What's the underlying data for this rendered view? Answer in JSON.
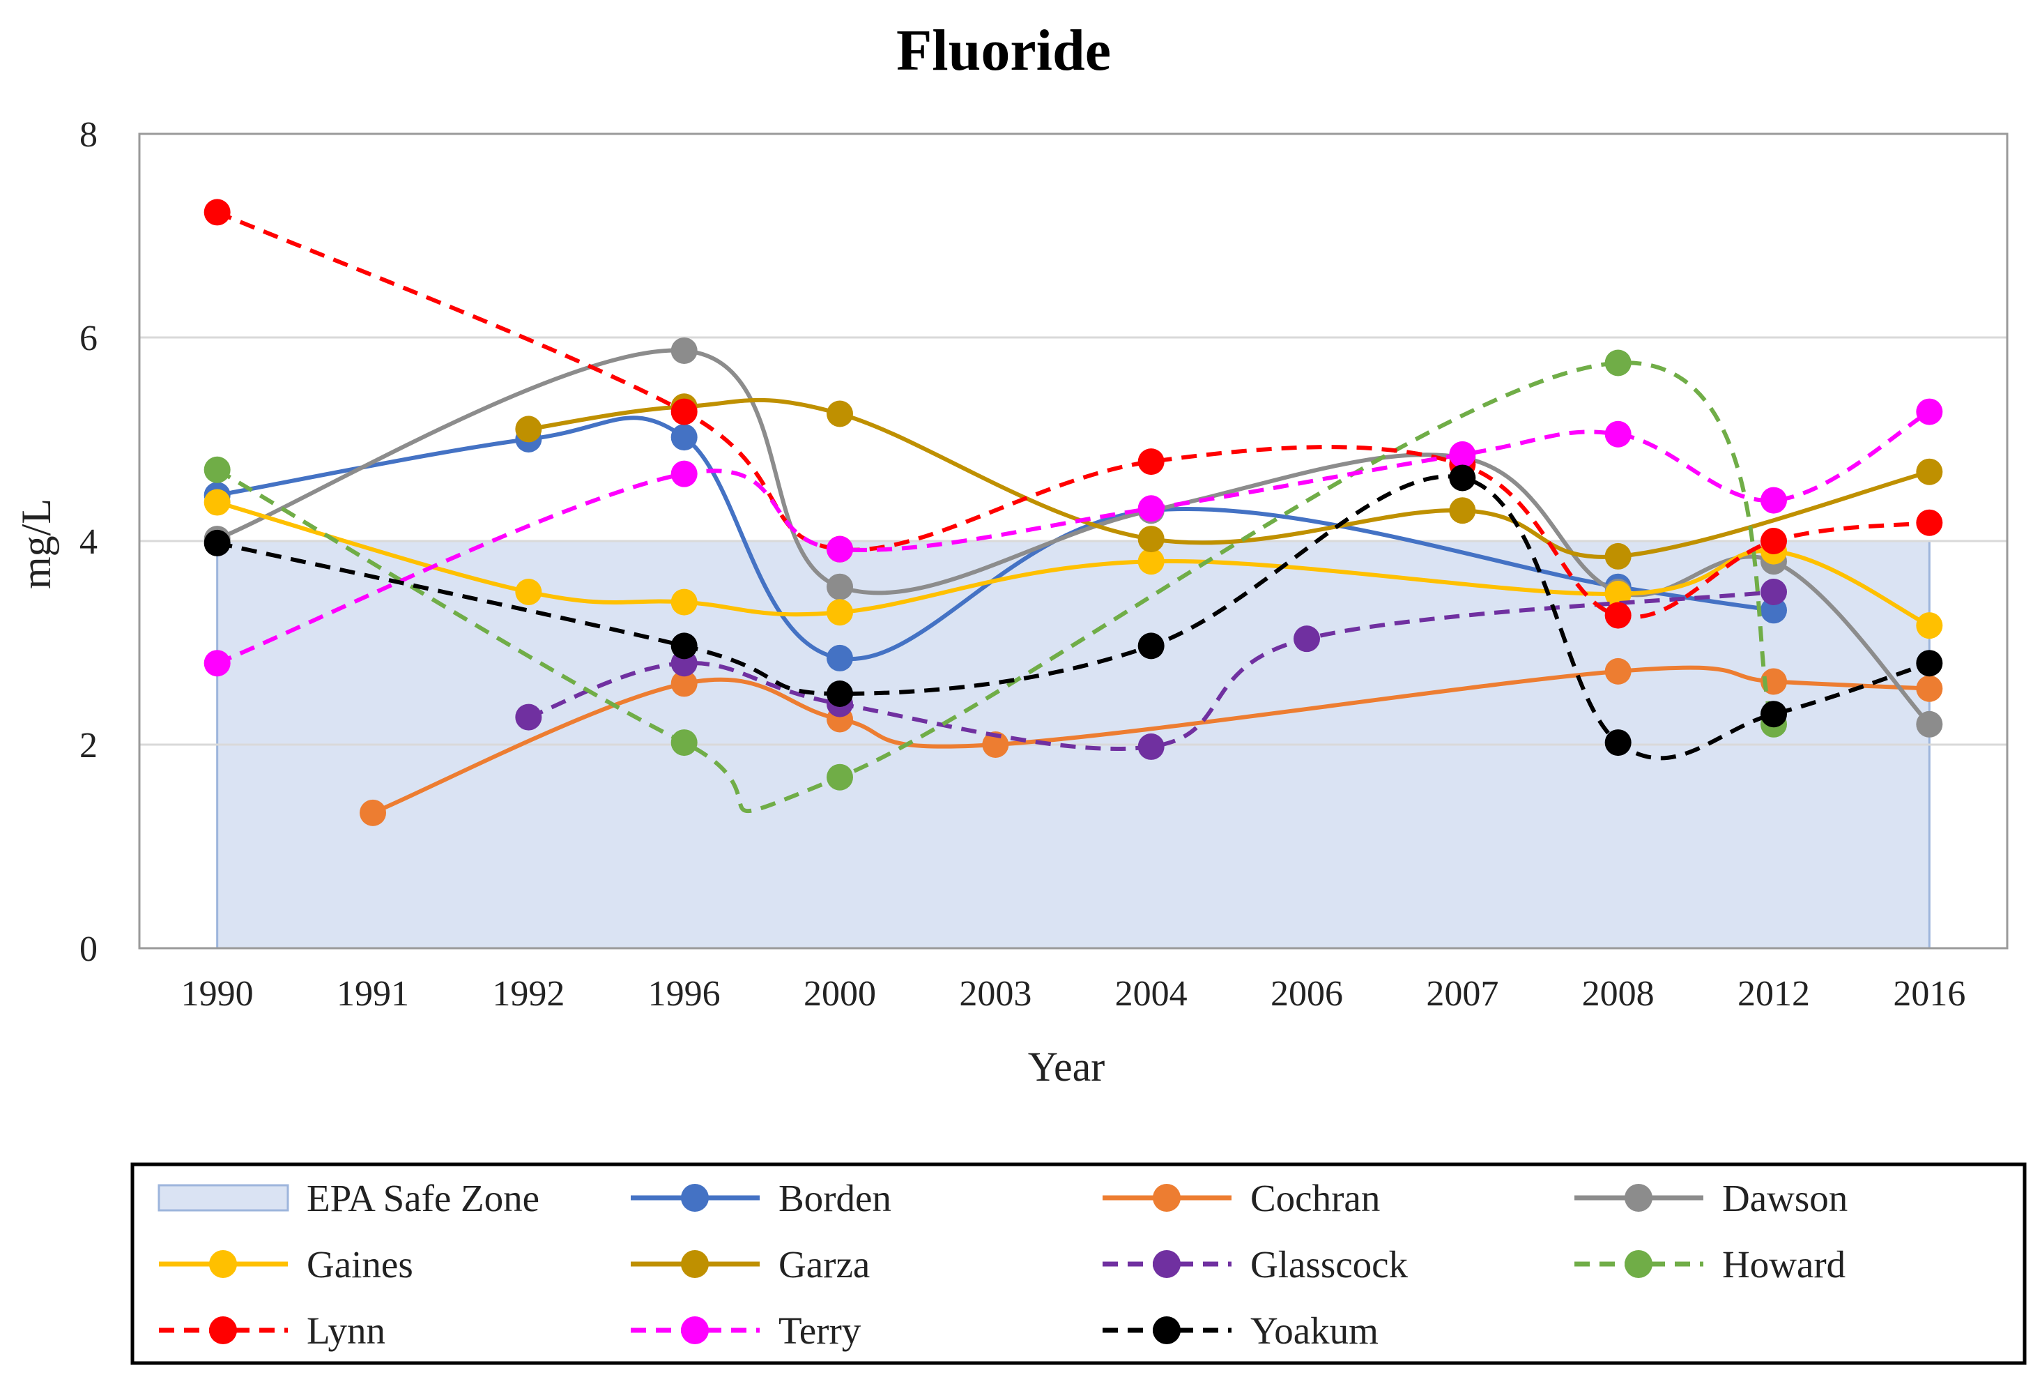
{
  "chart_data": {
    "type": "line",
    "title": "Fluoride",
    "xlabel": "Year",
    "ylabel": "mg/L",
    "categories": [
      "1990",
      "1991",
      "1992",
      "1996",
      "2000",
      "2003",
      "2004",
      "2006",
      "2007",
      "2008",
      "2012",
      "2016"
    ],
    "ylim": [
      0,
      8
    ],
    "yticks": [
      0,
      2,
      4,
      6,
      8
    ],
    "grid": "horizontal",
    "legend_position": "bottom",
    "safe_zone": {
      "name": "EPA Safe Zone",
      "value": 4,
      "color": "#dae3f3",
      "border": "#9db5dc"
    },
    "series": [
      {
        "name": "Borden",
        "color": "#4472c4",
        "dash": false,
        "values": [
          4.45,
          null,
          5.0,
          5.02,
          2.85,
          null,
          4.3,
          null,
          null,
          3.55,
          3.32,
          null
        ]
      },
      {
        "name": "Cochran",
        "color": "#ed7d31",
        "dash": false,
        "values": [
          null,
          1.33,
          null,
          2.6,
          2.25,
          2.0,
          null,
          null,
          null,
          2.72,
          2.62,
          2.55
        ]
      },
      {
        "name": "Dawson",
        "color": "#8c8c8c",
        "dash": false,
        "values": [
          4.02,
          null,
          null,
          5.87,
          3.55,
          null,
          4.3,
          null,
          4.82,
          3.5,
          3.8,
          2.2
        ]
      },
      {
        "name": "Gaines",
        "color": "#ffc000",
        "dash": false,
        "values": [
          4.38,
          null,
          3.5,
          3.4,
          3.3,
          null,
          3.8,
          null,
          null,
          3.48,
          3.9,
          3.17
        ]
      },
      {
        "name": "Garza",
        "color": "#bf9000",
        "dash": false,
        "values": [
          null,
          null,
          5.1,
          5.32,
          5.25,
          null,
          4.02,
          null,
          4.3,
          3.85,
          null,
          4.68
        ]
      },
      {
        "name": "Glasscock",
        "color": "#7030a0",
        "dash": true,
        "values": [
          null,
          null,
          2.27,
          2.8,
          2.4,
          null,
          1.98,
          3.04,
          null,
          null,
          3.5,
          null
        ]
      },
      {
        "name": "Howard",
        "color": "#70ad47",
        "dash": true,
        "values": [
          4.7,
          null,
          null,
          2.02,
          1.68,
          null,
          null,
          null,
          null,
          5.75,
          2.2,
          null
        ]
      },
      {
        "name": "Lynn",
        "color": "#ff0000",
        "dash": true,
        "values": [
          7.23,
          null,
          null,
          5.27,
          3.92,
          null,
          4.78,
          null,
          4.75,
          3.27,
          4.0,
          4.18
        ]
      },
      {
        "name": "Terry",
        "color": "#ff00ff",
        "dash": true,
        "values": [
          2.8,
          null,
          null,
          4.66,
          3.92,
          null,
          4.32,
          null,
          4.85,
          5.05,
          4.4,
          5.27
        ]
      },
      {
        "name": "Yoakum",
        "color": "#000000",
        "dash": true,
        "values": [
          3.98,
          null,
          null,
          2.97,
          2.5,
          null,
          2.97,
          null,
          4.62,
          2.02,
          2.3,
          2.8
        ]
      }
    ]
  }
}
